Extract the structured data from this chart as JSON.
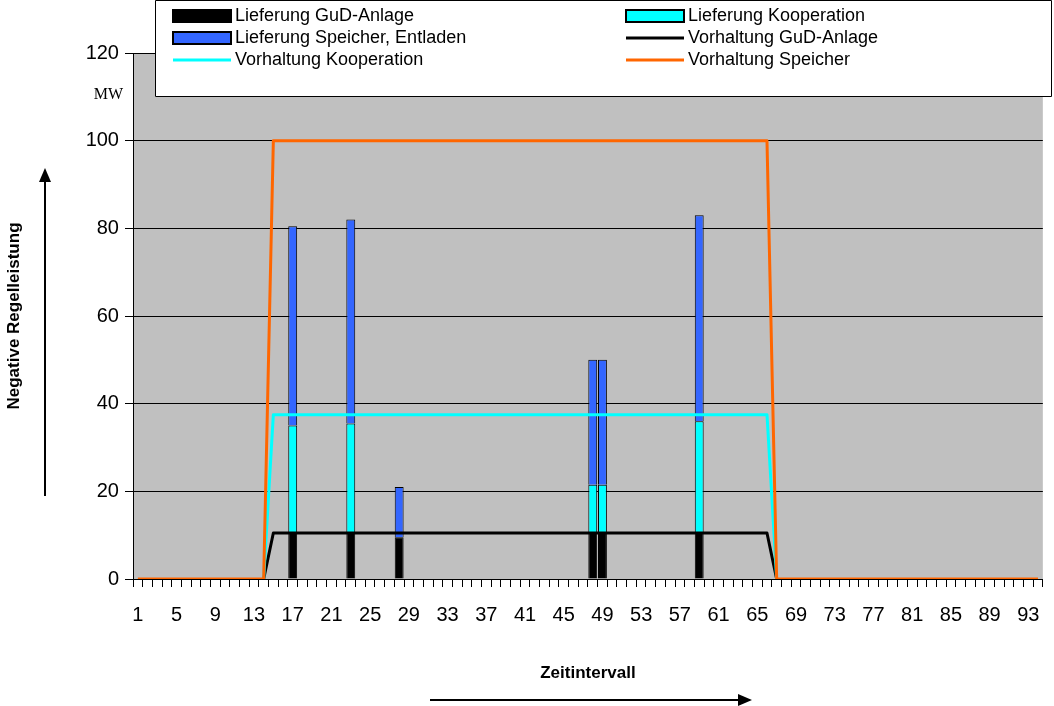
{
  "chart_data": {
    "type": "bar",
    "stacked": true,
    "xlabel": "Zeitintervall",
    "ylabel": "Negative Regelleistung",
    "annotations": [
      "MW"
    ],
    "categories": [
      "1",
      null,
      null,
      null,
      "5",
      null,
      null,
      null,
      "9",
      null,
      null,
      null,
      "13",
      null,
      null,
      null,
      "17",
      null,
      null,
      null,
      "21",
      null,
      null,
      null,
      "25",
      null,
      null,
      null,
      "29",
      null,
      null,
      null,
      "33",
      null,
      null,
      null,
      "37",
      null,
      null,
      null,
      "41",
      null,
      null,
      null,
      "45",
      null,
      null,
      null,
      "49",
      null,
      null,
      null,
      "53",
      null,
      null,
      null,
      "57",
      null,
      null,
      null,
      "61",
      null,
      null,
      null,
      "65",
      null,
      null,
      null,
      "69",
      null,
      null,
      null,
      "73",
      null,
      null,
      null,
      "77",
      null,
      null,
      null,
      "81",
      null,
      null,
      null,
      "85",
      null,
      null,
      null,
      "89",
      null,
      null,
      null,
      "93",
      null
    ],
    "ylim": [
      0,
      120
    ],
    "yticks": [
      0,
      20,
      40,
      60,
      80,
      100,
      120
    ],
    "grid": "y",
    "legend": "top",
    "series": [
      {
        "name": "Lieferung GuD-Anlage",
        "color": "#000000",
        "values": [
          null,
          null,
          null,
          null,
          null,
          null,
          null,
          null,
          null,
          null,
          null,
          null,
          null,
          null,
          null,
          null,
          10.5,
          null,
          null,
          null,
          null,
          null,
          10.5,
          null,
          null,
          null,
          null,
          9.5,
          null,
          null,
          null,
          null,
          null,
          null,
          null,
          null,
          null,
          null,
          null,
          null,
          null,
          null,
          null,
          null,
          null,
          null,
          null,
          10.5,
          10.5,
          null,
          null,
          null,
          null,
          null,
          null,
          null,
          null,
          null,
          10.5,
          null,
          null,
          null,
          null,
          null,
          null,
          null,
          null,
          null,
          null,
          null,
          null,
          null,
          null,
          null,
          null,
          null,
          null,
          null,
          null,
          null,
          null,
          null,
          null,
          null,
          null,
          null,
          null,
          null,
          null,
          null,
          null,
          null,
          null,
          null
        ]
      },
      {
        "name": "Lieferung Kooperation",
        "color": "#00ffff",
        "values": [
          null,
          null,
          null,
          null,
          null,
          null,
          null,
          null,
          null,
          null,
          null,
          null,
          null,
          null,
          null,
          null,
          24.5,
          null,
          null,
          null,
          null,
          null,
          25,
          null,
          null,
          null,
          null,
          null,
          null,
          null,
          null,
          null,
          null,
          null,
          null,
          null,
          null,
          null,
          null,
          null,
          null,
          null,
          null,
          null,
          null,
          null,
          null,
          11,
          11,
          null,
          null,
          null,
          null,
          null,
          null,
          null,
          null,
          null,
          25.5,
          null,
          null,
          null,
          null,
          null,
          null,
          null,
          null,
          null,
          null,
          null,
          null,
          null,
          null,
          null,
          null,
          null,
          null,
          null,
          null,
          null,
          null,
          null,
          null,
          null,
          null,
          null,
          null,
          null,
          null,
          null,
          null,
          null,
          null,
          null
        ]
      },
      {
        "name": "Lieferung Speicher, Entladen",
        "color": "#3366ff",
        "values": [
          null,
          null,
          null,
          null,
          null,
          null,
          null,
          null,
          null,
          null,
          null,
          null,
          null,
          null,
          null,
          null,
          45.5,
          null,
          null,
          null,
          null,
          null,
          46.5,
          null,
          null,
          null,
          null,
          11.5,
          null,
          null,
          null,
          null,
          null,
          null,
          null,
          null,
          null,
          null,
          null,
          null,
          null,
          null,
          null,
          null,
          null,
          null,
          null,
          28.5,
          28.5,
          null,
          null,
          null,
          null,
          null,
          null,
          null,
          null,
          null,
          47,
          null,
          null,
          null,
          null,
          null,
          null,
          null,
          null,
          null,
          null,
          null,
          null,
          null,
          null,
          null,
          null,
          null,
          null,
          null,
          null,
          null,
          null,
          null,
          null,
          null,
          null,
          null,
          null,
          null,
          null,
          null,
          null,
          null,
          null,
          null
        ]
      },
      {
        "name": "Vorhaltung GuD-Anlage",
        "type": "line",
        "color": "#000000",
        "values": [
          null,
          null,
          null,
          null,
          null,
          null,
          null,
          null,
          null,
          null,
          null,
          null,
          null,
          0,
          10.5,
          10.5,
          10.5,
          10.5,
          10.5,
          10.5,
          10.5,
          10.5,
          10.5,
          10.5,
          10.5,
          10.5,
          10.5,
          10.5,
          10.5,
          10.5,
          10.5,
          10.5,
          10.5,
          10.5,
          10.5,
          10.5,
          10.5,
          10.5,
          10.5,
          10.5,
          10.5,
          10.5,
          10.5,
          10.5,
          10.5,
          10.5,
          10.5,
          10.5,
          10.5,
          10.5,
          10.5,
          10.5,
          10.5,
          10.5,
          10.5,
          10.5,
          10.5,
          10.5,
          10.5,
          10.5,
          10.5,
          10.5,
          10.5,
          10.5,
          10.5,
          10.5,
          0,
          null,
          null,
          null,
          null,
          null,
          null,
          null,
          null,
          null,
          null,
          null,
          null,
          null,
          null,
          null,
          null,
          null,
          null,
          null,
          null,
          null,
          null,
          null,
          null,
          null,
          null,
          null
        ]
      },
      {
        "name": "Vorhaltung Kooperation",
        "type": "line",
        "color": "#00ffff",
        "values": [
          null,
          null,
          null,
          null,
          null,
          null,
          null,
          null,
          null,
          null,
          null,
          null,
          null,
          0,
          37.5,
          37.5,
          37.5,
          37.5,
          37.5,
          37.5,
          37.5,
          37.5,
          37.5,
          37.5,
          37.5,
          37.5,
          37.5,
          37.5,
          37.5,
          37.5,
          37.5,
          37.5,
          37.5,
          37.5,
          37.5,
          37.5,
          37.5,
          37.5,
          37.5,
          37.5,
          37.5,
          37.5,
          37.5,
          37.5,
          37.5,
          37.5,
          37.5,
          37.5,
          37.5,
          37.5,
          37.5,
          37.5,
          37.5,
          37.5,
          37.5,
          37.5,
          37.5,
          37.5,
          37.5,
          37.5,
          37.5,
          37.5,
          37.5,
          37.5,
          37.5,
          37.5,
          0,
          null,
          null,
          null,
          null,
          null,
          null,
          null,
          null,
          null,
          null,
          null,
          null,
          null,
          null,
          null,
          null,
          null,
          null,
          null,
          null,
          null,
          null,
          null,
          null,
          null,
          null,
          null
        ]
      },
      {
        "name": "Vorhaltung Speicher",
        "type": "line",
        "color": "#ff6600",
        "values": [
          0,
          0,
          0,
          0,
          0,
          0,
          0,
          0,
          0,
          0,
          0,
          0,
          0,
          0,
          100,
          100,
          100,
          100,
          100,
          100,
          100,
          100,
          100,
          100,
          100,
          100,
          100,
          100,
          100,
          100,
          100,
          100,
          100,
          100,
          100,
          100,
          100,
          100,
          100,
          100,
          100,
          100,
          100,
          100,
          100,
          100,
          100,
          100,
          100,
          100,
          100,
          100,
          100,
          100,
          100,
          100,
          100,
          100,
          100,
          100,
          100,
          100,
          100,
          100,
          100,
          100,
          0,
          0,
          0,
          0,
          0,
          0,
          0,
          0,
          0,
          0,
          0,
          0,
          0,
          0,
          0,
          0,
          0,
          0,
          0,
          0,
          0,
          0,
          0,
          0,
          0,
          0,
          0,
          0
        ]
      }
    ]
  }
}
